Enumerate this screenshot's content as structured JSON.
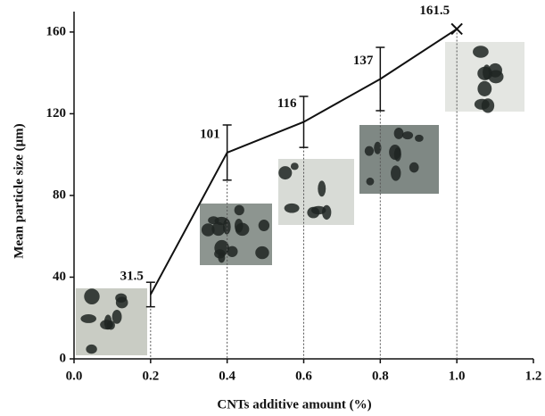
{
  "chart_data": {
    "type": "line",
    "x_label": "CNTs additive amount (%)",
    "y_label": "Mean particle size (μm)",
    "x": [
      0.2,
      0.4,
      0.6,
      0.8,
      1.0
    ],
    "series": [
      {
        "values": [
          31.5,
          101,
          116,
          137,
          161.5
        ],
        "errors": [
          6,
          13.5,
          12.5,
          15.5,
          null
        ],
        "color": "#111111"
      }
    ],
    "xlim": [
      0,
      1.2
    ],
    "xticks": [
      {
        "value": 0,
        "label": "0.0"
      },
      0.2,
      0.4,
      0.6,
      0.8,
      {
        "value": 1,
        "label": "1.0"
      },
      1.2
    ],
    "ylim": [
      0,
      170
    ],
    "yticks": [
      0,
      40,
      80,
      120,
      160
    ],
    "grid": false
  }
}
